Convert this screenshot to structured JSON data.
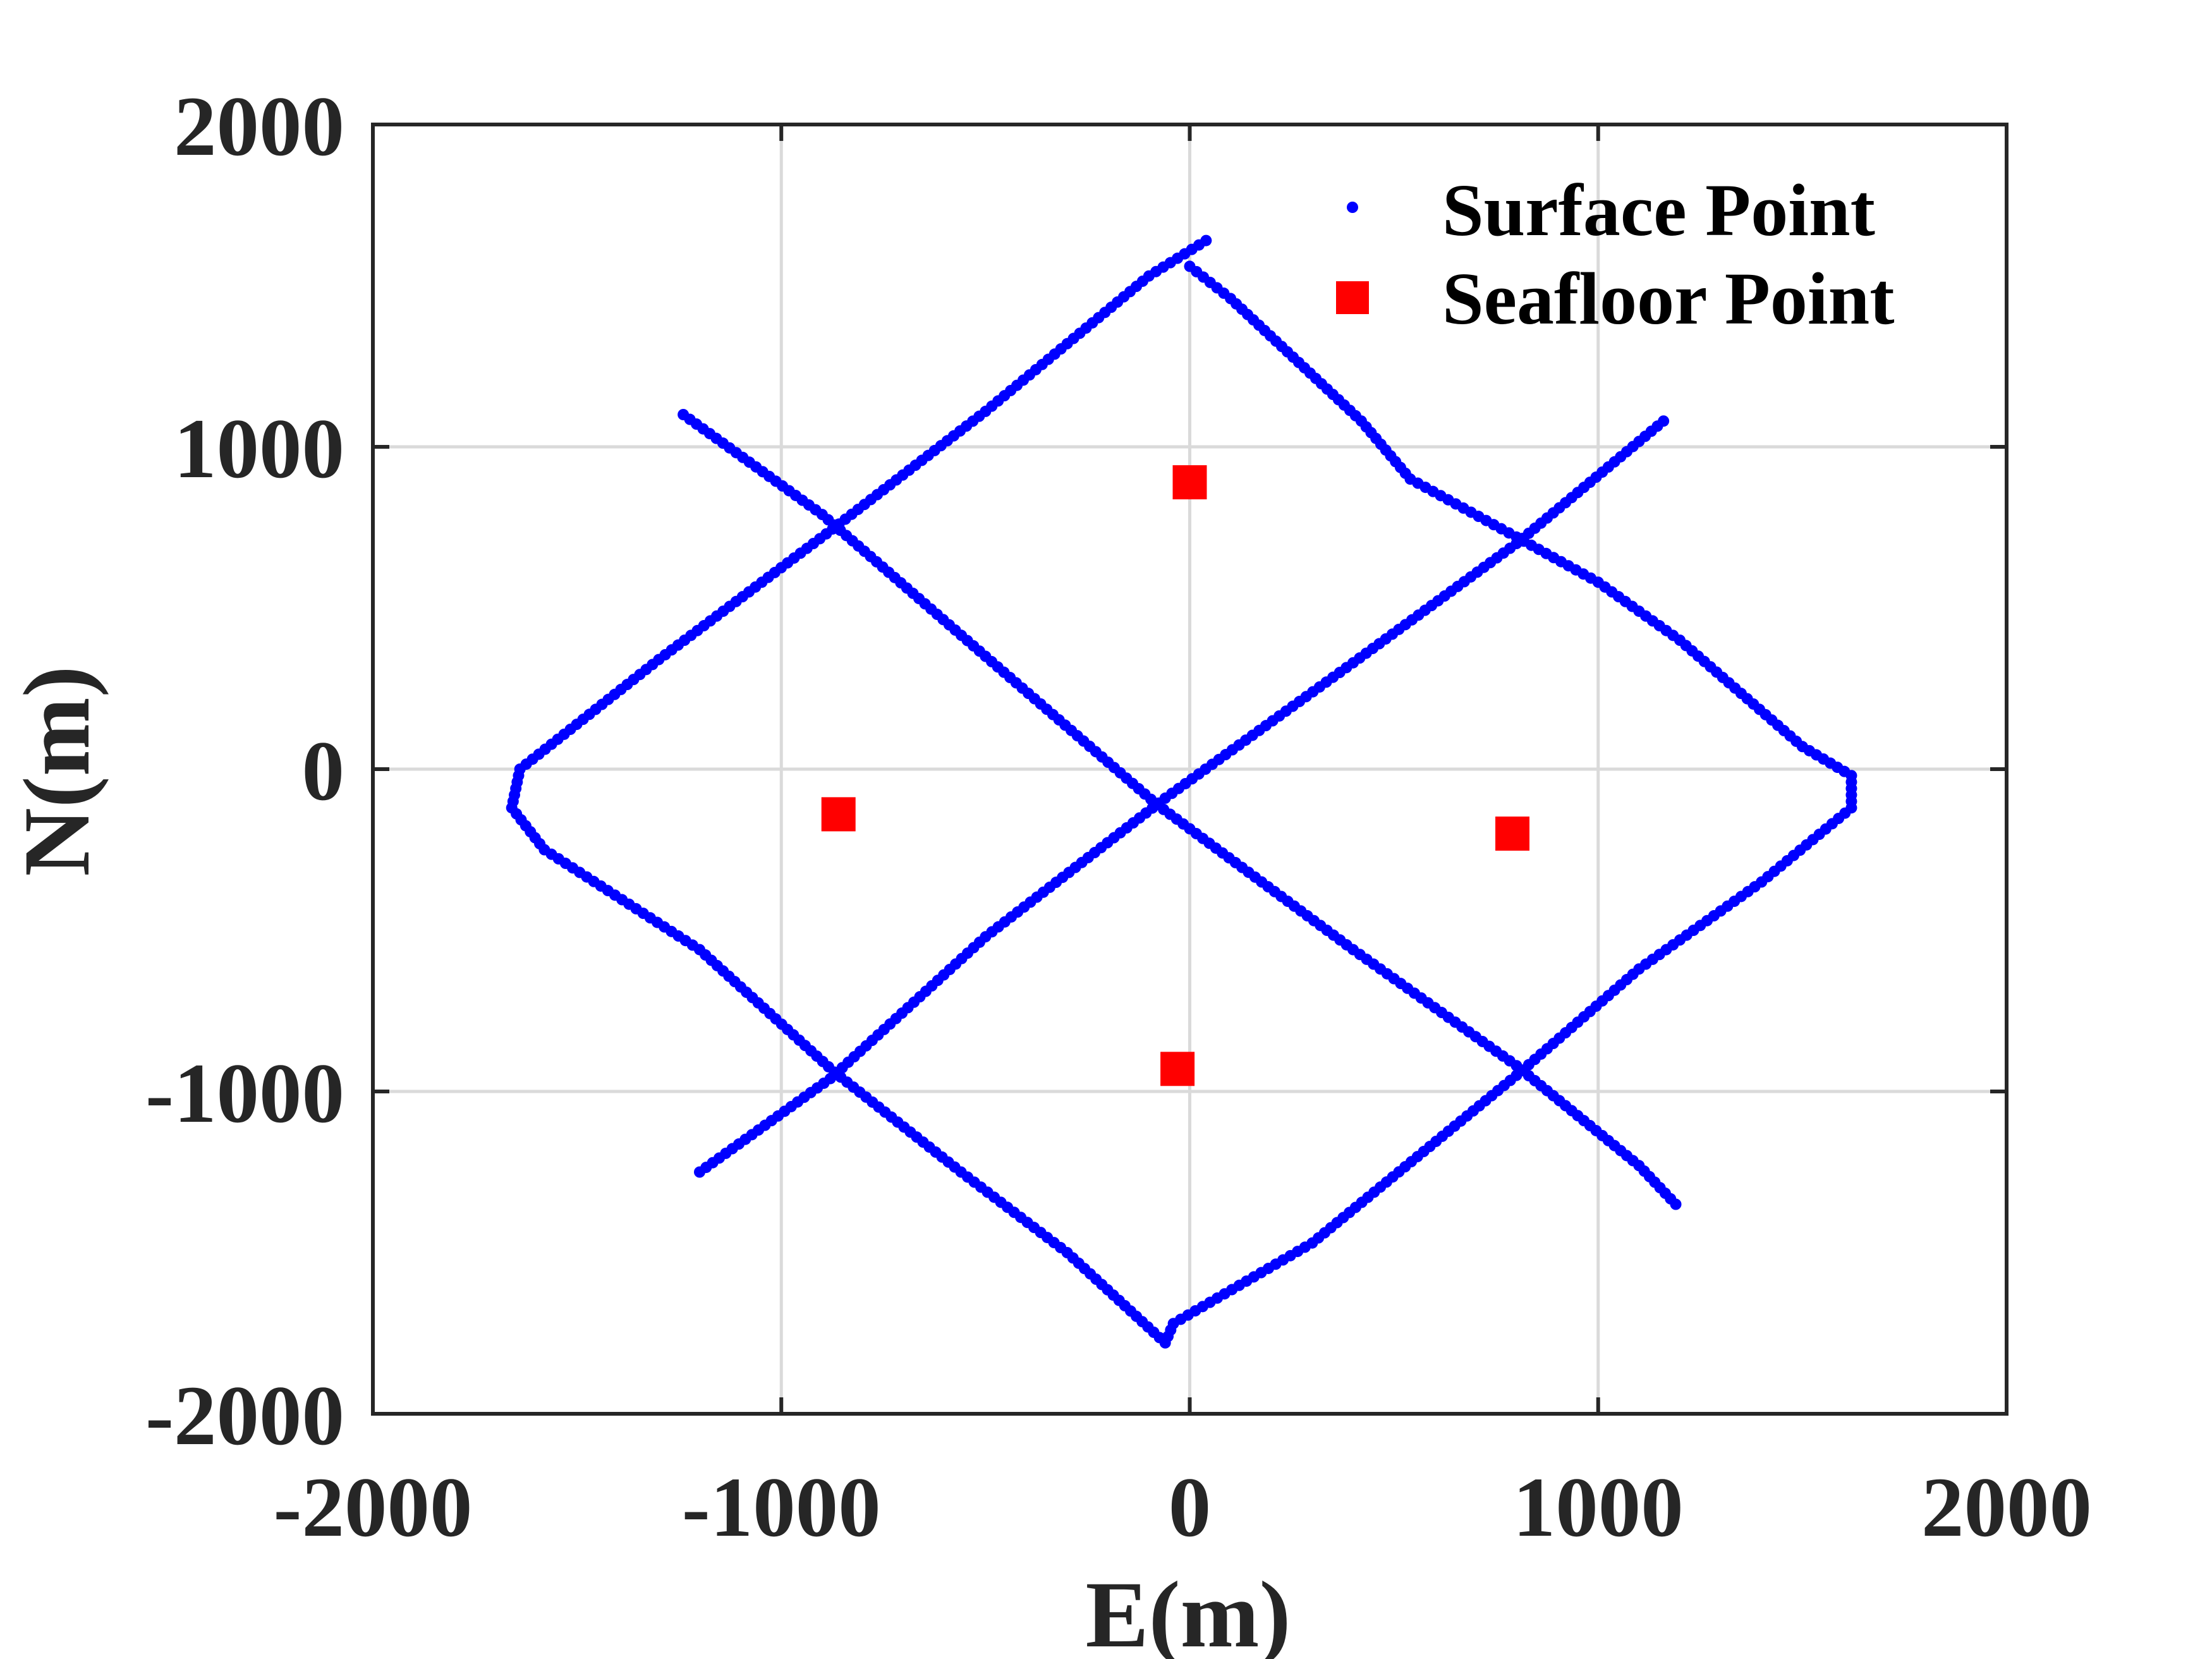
{
  "chart_data": {
    "type": "scatter",
    "xlabel": "E(m)",
    "ylabel": "N(m)",
    "xlim": [
      -2000,
      2000
    ],
    "ylim": [
      -2000,
      2000
    ],
    "xticks": [
      -2000,
      -1000,
      0,
      1000,
      2000
    ],
    "yticks": [
      -2000,
      -1000,
      0,
      1000,
      2000
    ],
    "xtick_labels": [
      "-2000",
      "-1000",
      "0",
      "1000",
      "2000"
    ],
    "ytick_labels": [
      "-2000",
      "-1000",
      "0",
      "1000",
      "2000"
    ],
    "grid": true,
    "legend_position": "top-right",
    "series": [
      {
        "name": "Surface Point",
        "marker": "dot",
        "color": "#0000ff",
        "paths": [
          {
            "points": [
              [
                40,
                1640
              ],
              [
                -100,
                1530
              ],
              [
                -500,
                1110
              ],
              [
                -890,
                730
              ],
              [
                -1300,
                340
              ],
              [
                -1640,
                0
              ],
              [
                -1660,
                -120
              ],
              [
                -1580,
                -250
              ],
              [
                -1200,
                -560
              ],
              [
                -870,
                -940
              ],
              [
                -560,
                -1250
              ],
              [
                -300,
                -1500
              ],
              [
                -60,
                -1780
              ],
              [
                -40,
                -1720
              ],
              [
                300,
                -1470
              ],
              [
                800,
                -950
              ],
              [
                1100,
                -620
              ],
              [
                1400,
                -350
              ],
              [
                1620,
                -120
              ],
              [
                1620,
                -20
              ],
              [
                1500,
                70
              ],
              [
                1200,
                400
              ],
              [
                1000,
                580
              ],
              [
                800,
                720
              ],
              [
                540,
                900
              ],
              [
                420,
                1080
              ],
              [
                100,
                1460
              ],
              [
                0,
                1560
              ]
            ],
            "step": 22
          },
          {
            "points": [
              [
                -1240,
                1100
              ],
              [
                -900,
                790
              ],
              [
                -500,
                350
              ],
              [
                -80,
                -110
              ],
              [
                400,
                -560
              ],
              [
                800,
                -920
              ],
              [
                1100,
                -1230
              ],
              [
                1190,
                -1350
              ]
            ],
            "step": 22
          },
          {
            "points": [
              [
                -1200,
                -1250
              ],
              [
                -880,
                -960
              ],
              [
                -500,
                -520
              ],
              [
                -60,
                -90
              ],
              [
                400,
                330
              ],
              [
                800,
                700
              ],
              [
                1160,
                1080
              ]
            ],
            "step": 22
          }
        ]
      },
      {
        "name": "Seafloor Point",
        "marker": "square",
        "color": "#ff0000",
        "x": [
          0,
          -860,
          790,
          -30
        ],
        "y": [
          890,
          -140,
          -200,
          -930
        ]
      }
    ]
  }
}
